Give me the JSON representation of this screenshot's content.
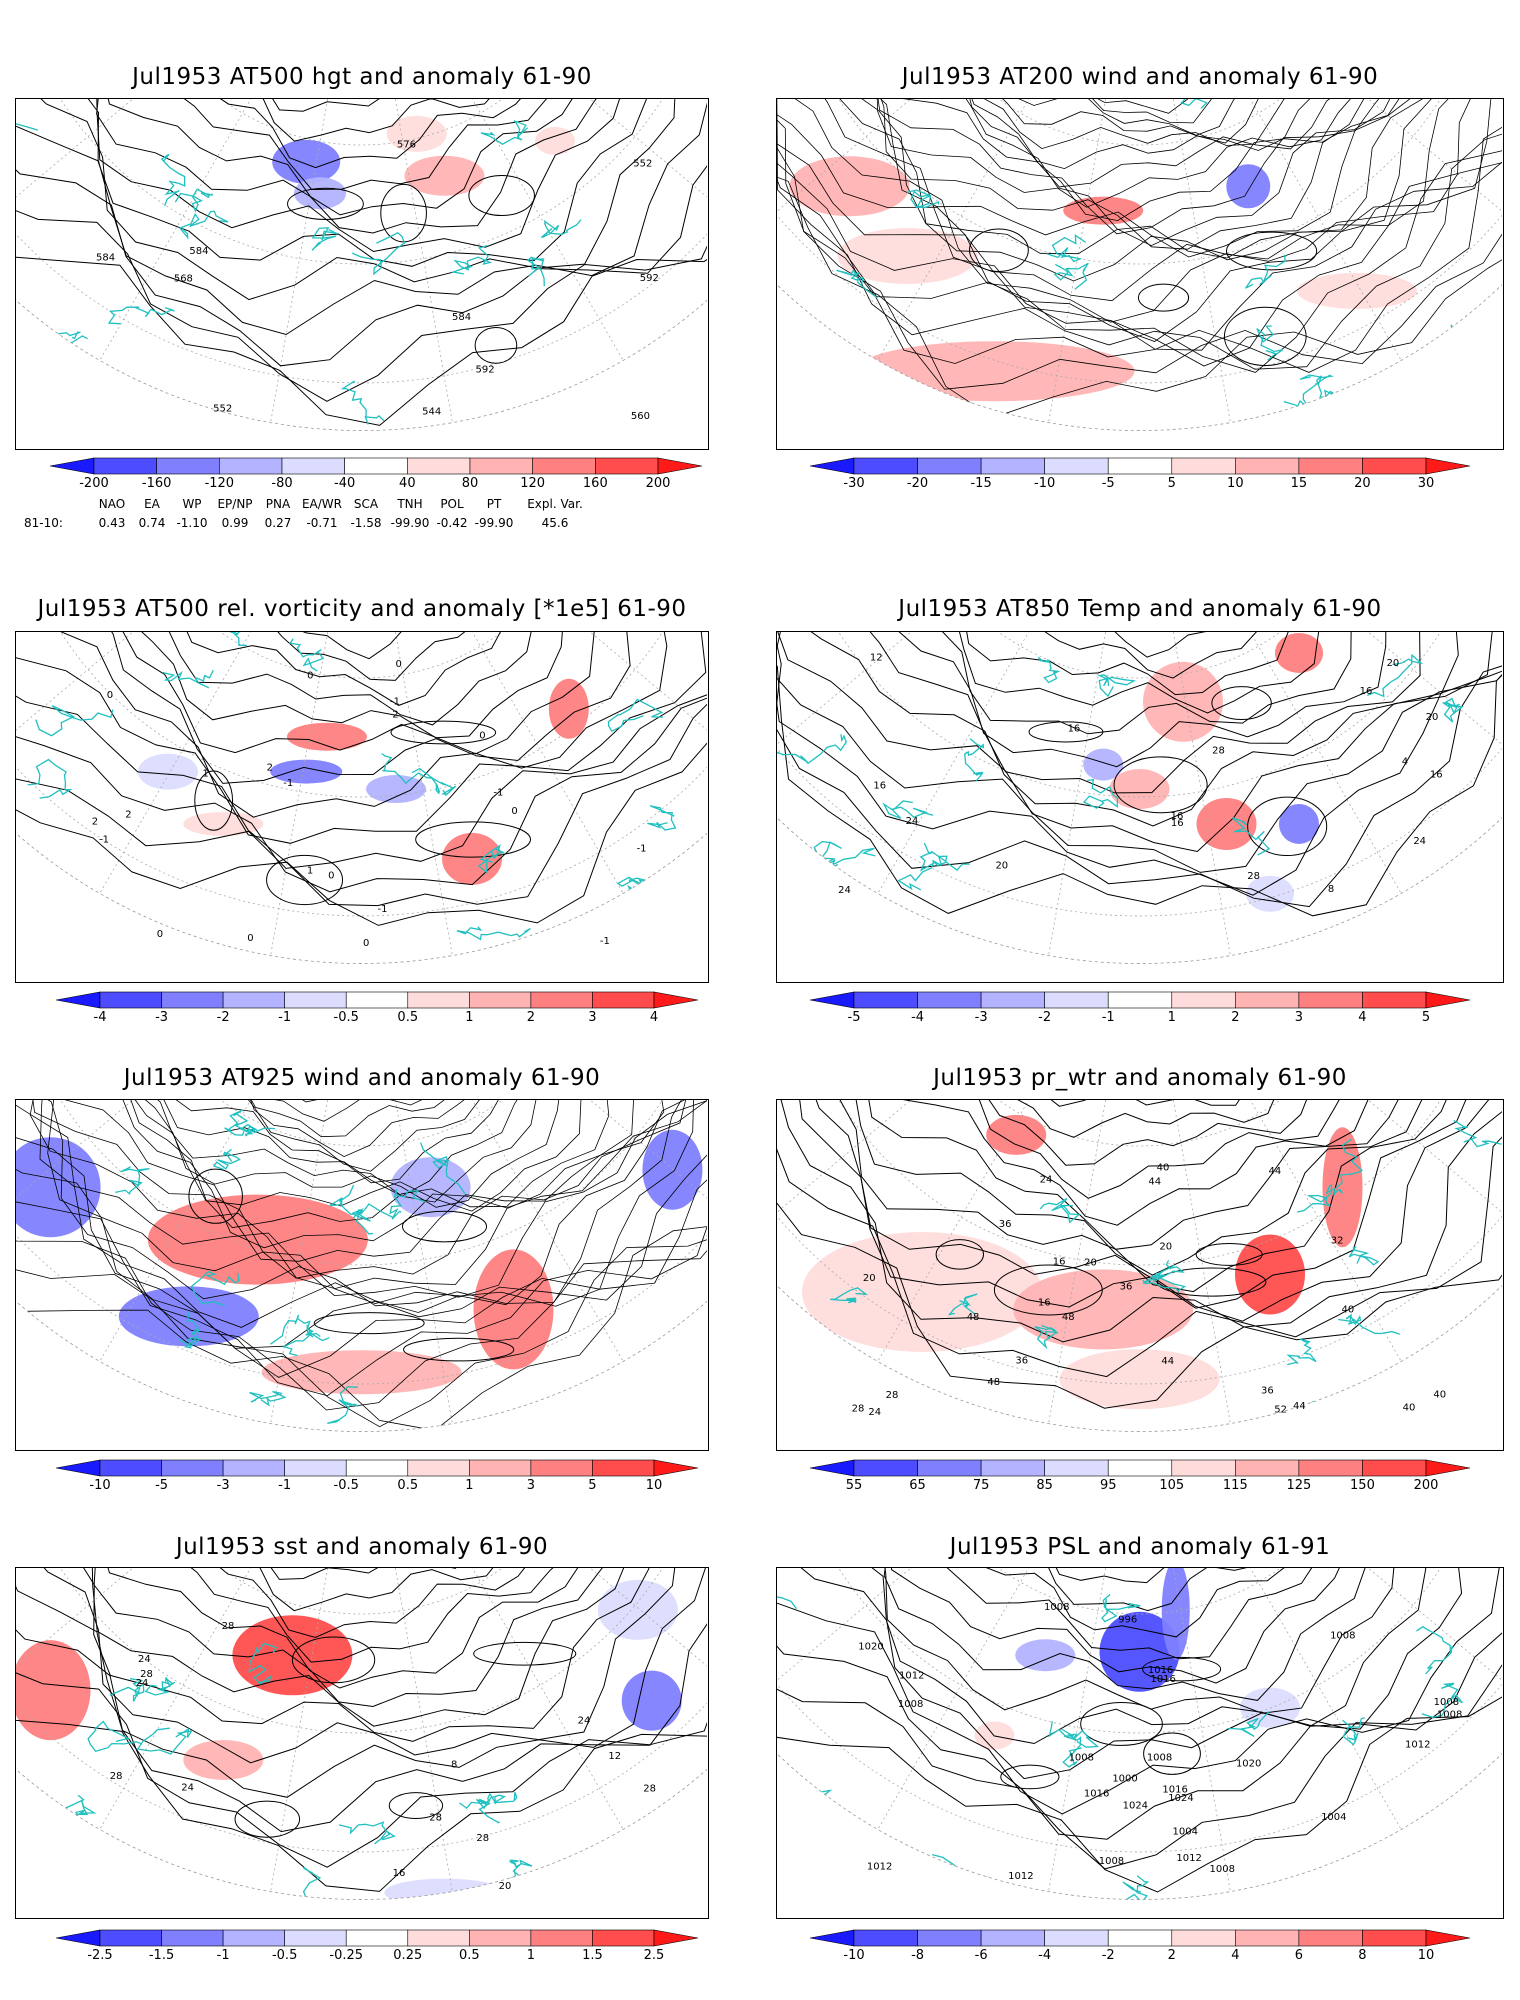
{
  "panels": [
    {
      "title": "Jul1953 AT500 hgt and anomaly 61-90",
      "colorbar": [
        "-200",
        "-160",
        "-120",
        "-80",
        "-40",
        "40",
        "80",
        "120",
        "160",
        "200"
      ],
      "contour_labels": [
        "592",
        "544",
        "552",
        "552",
        "560",
        "568",
        "576",
        "584",
        "584",
        "592",
        "584"
      ]
    },
    {
      "title": "Jul1953 AT200 wind and anomaly 61-90",
      "colorbar": [
        "-30",
        "-20",
        "-15",
        "-10",
        "-5",
        "5",
        "10",
        "15",
        "20",
        "30"
      ],
      "contour_labels": []
    },
    {
      "title": "Jul1953 AT500 rel. vorticity and anomaly [*1e5] 61-90",
      "colorbar": [
        "-4",
        "-3",
        "-2",
        "-1",
        "-0.5",
        "0.5",
        "1",
        "2",
        "3",
        "4"
      ],
      "contour_labels": [
        "0",
        "0",
        "-1",
        "2",
        "-1",
        "2",
        "0",
        "-1",
        "0",
        "1",
        "2",
        "0",
        "-1",
        "-1",
        "0",
        "0",
        "2",
        "-1",
        "1",
        "0",
        "-1",
        "0"
      ]
    },
    {
      "title": "Jul1953 AT850 Temp and anomaly 61-90",
      "colorbar": [
        "-5",
        "-4",
        "-3",
        "-2",
        "-1",
        "1",
        "2",
        "3",
        "4",
        "5"
      ],
      "contour_labels": [
        "20",
        "16",
        "16",
        "4",
        "8",
        "16",
        "12",
        "20",
        "24",
        "28",
        "28",
        "24",
        "24",
        "20",
        "16",
        "16",
        "16"
      ]
    },
    {
      "title": "Jul1953 AT925 wind and anomaly 61-90",
      "colorbar": [
        "-10",
        "-5",
        "-3",
        "-1",
        "-0.5",
        "0.5",
        "1",
        "3",
        "5",
        "10"
      ],
      "contour_labels": []
    },
    {
      "title": "Jul1953 pr_wtr and anomaly 61-90",
      "colorbar": [
        "55",
        "65",
        "75",
        "85",
        "95",
        "105",
        "115",
        "125",
        "150",
        "200"
      ],
      "contour_labels": [
        "44",
        "36",
        "40",
        "52",
        "48",
        "36",
        "24",
        "32",
        "40",
        "20",
        "16",
        "20",
        "28",
        "24",
        "20",
        "16",
        "28",
        "44",
        "36",
        "40",
        "44",
        "48",
        "48",
        "44",
        "40",
        "36"
      ]
    },
    {
      "title": "Jul1953 sst and anomaly 61-90",
      "colorbar": [
        "-2.5",
        "-1.5",
        "-1",
        "-0.5",
        "-0.25",
        "0.25",
        "0.5",
        "1",
        "1.5",
        "2.5"
      ],
      "contour_labels": [
        "24",
        "28",
        "28",
        "28",
        "8",
        "12",
        "16",
        "20",
        "24",
        "28",
        "28",
        "24",
        "28",
        "24"
      ]
    },
    {
      "title": "Jul1953 PSL and anomaly 61-91",
      "colorbar": [
        "-10",
        "-8",
        "-6",
        "-4",
        "-2",
        "2",
        "4",
        "6",
        "8",
        "10"
      ],
      "contour_labels": [
        "1016",
        "1016",
        "1008",
        "1008",
        "1012",
        "1008",
        "1012",
        "1020",
        "1024",
        "1024",
        "1020",
        "1008",
        "1012",
        "1016",
        "1016",
        "1012",
        "1008",
        "1008",
        "1008",
        "1000",
        "1004",
        "1008",
        "1004",
        "1012",
        "1008",
        "996"
      ]
    }
  ],
  "indices": {
    "row_label": "81-10:",
    "names": [
      "NAO",
      "EA",
      "WP",
      "EP/NP",
      "PNA",
      "EA/WR",
      "SCA",
      "TNH",
      "POL",
      "PT",
      "Expl. Var."
    ],
    "values": [
      "0.43",
      "0.74",
      "-1.10",
      "0.99",
      "0.27",
      "-0.71",
      "-1.58",
      "-99.90",
      "-0.42",
      "-99.90",
      "45.6"
    ]
  },
  "colors": {
    "coast": "#20c0c0",
    "contour": "#000000",
    "grid": "#aaaaaa",
    "palette": [
      "#1a1aff",
      "#4d4dff",
      "#8080ff",
      "#b3b3ff",
      "#dcdcff",
      "#ffffff",
      "#ffdcdc",
      "#ffb3b3",
      "#ff8080",
      "#ff4d4d",
      "#ff1a1a"
    ]
  }
}
